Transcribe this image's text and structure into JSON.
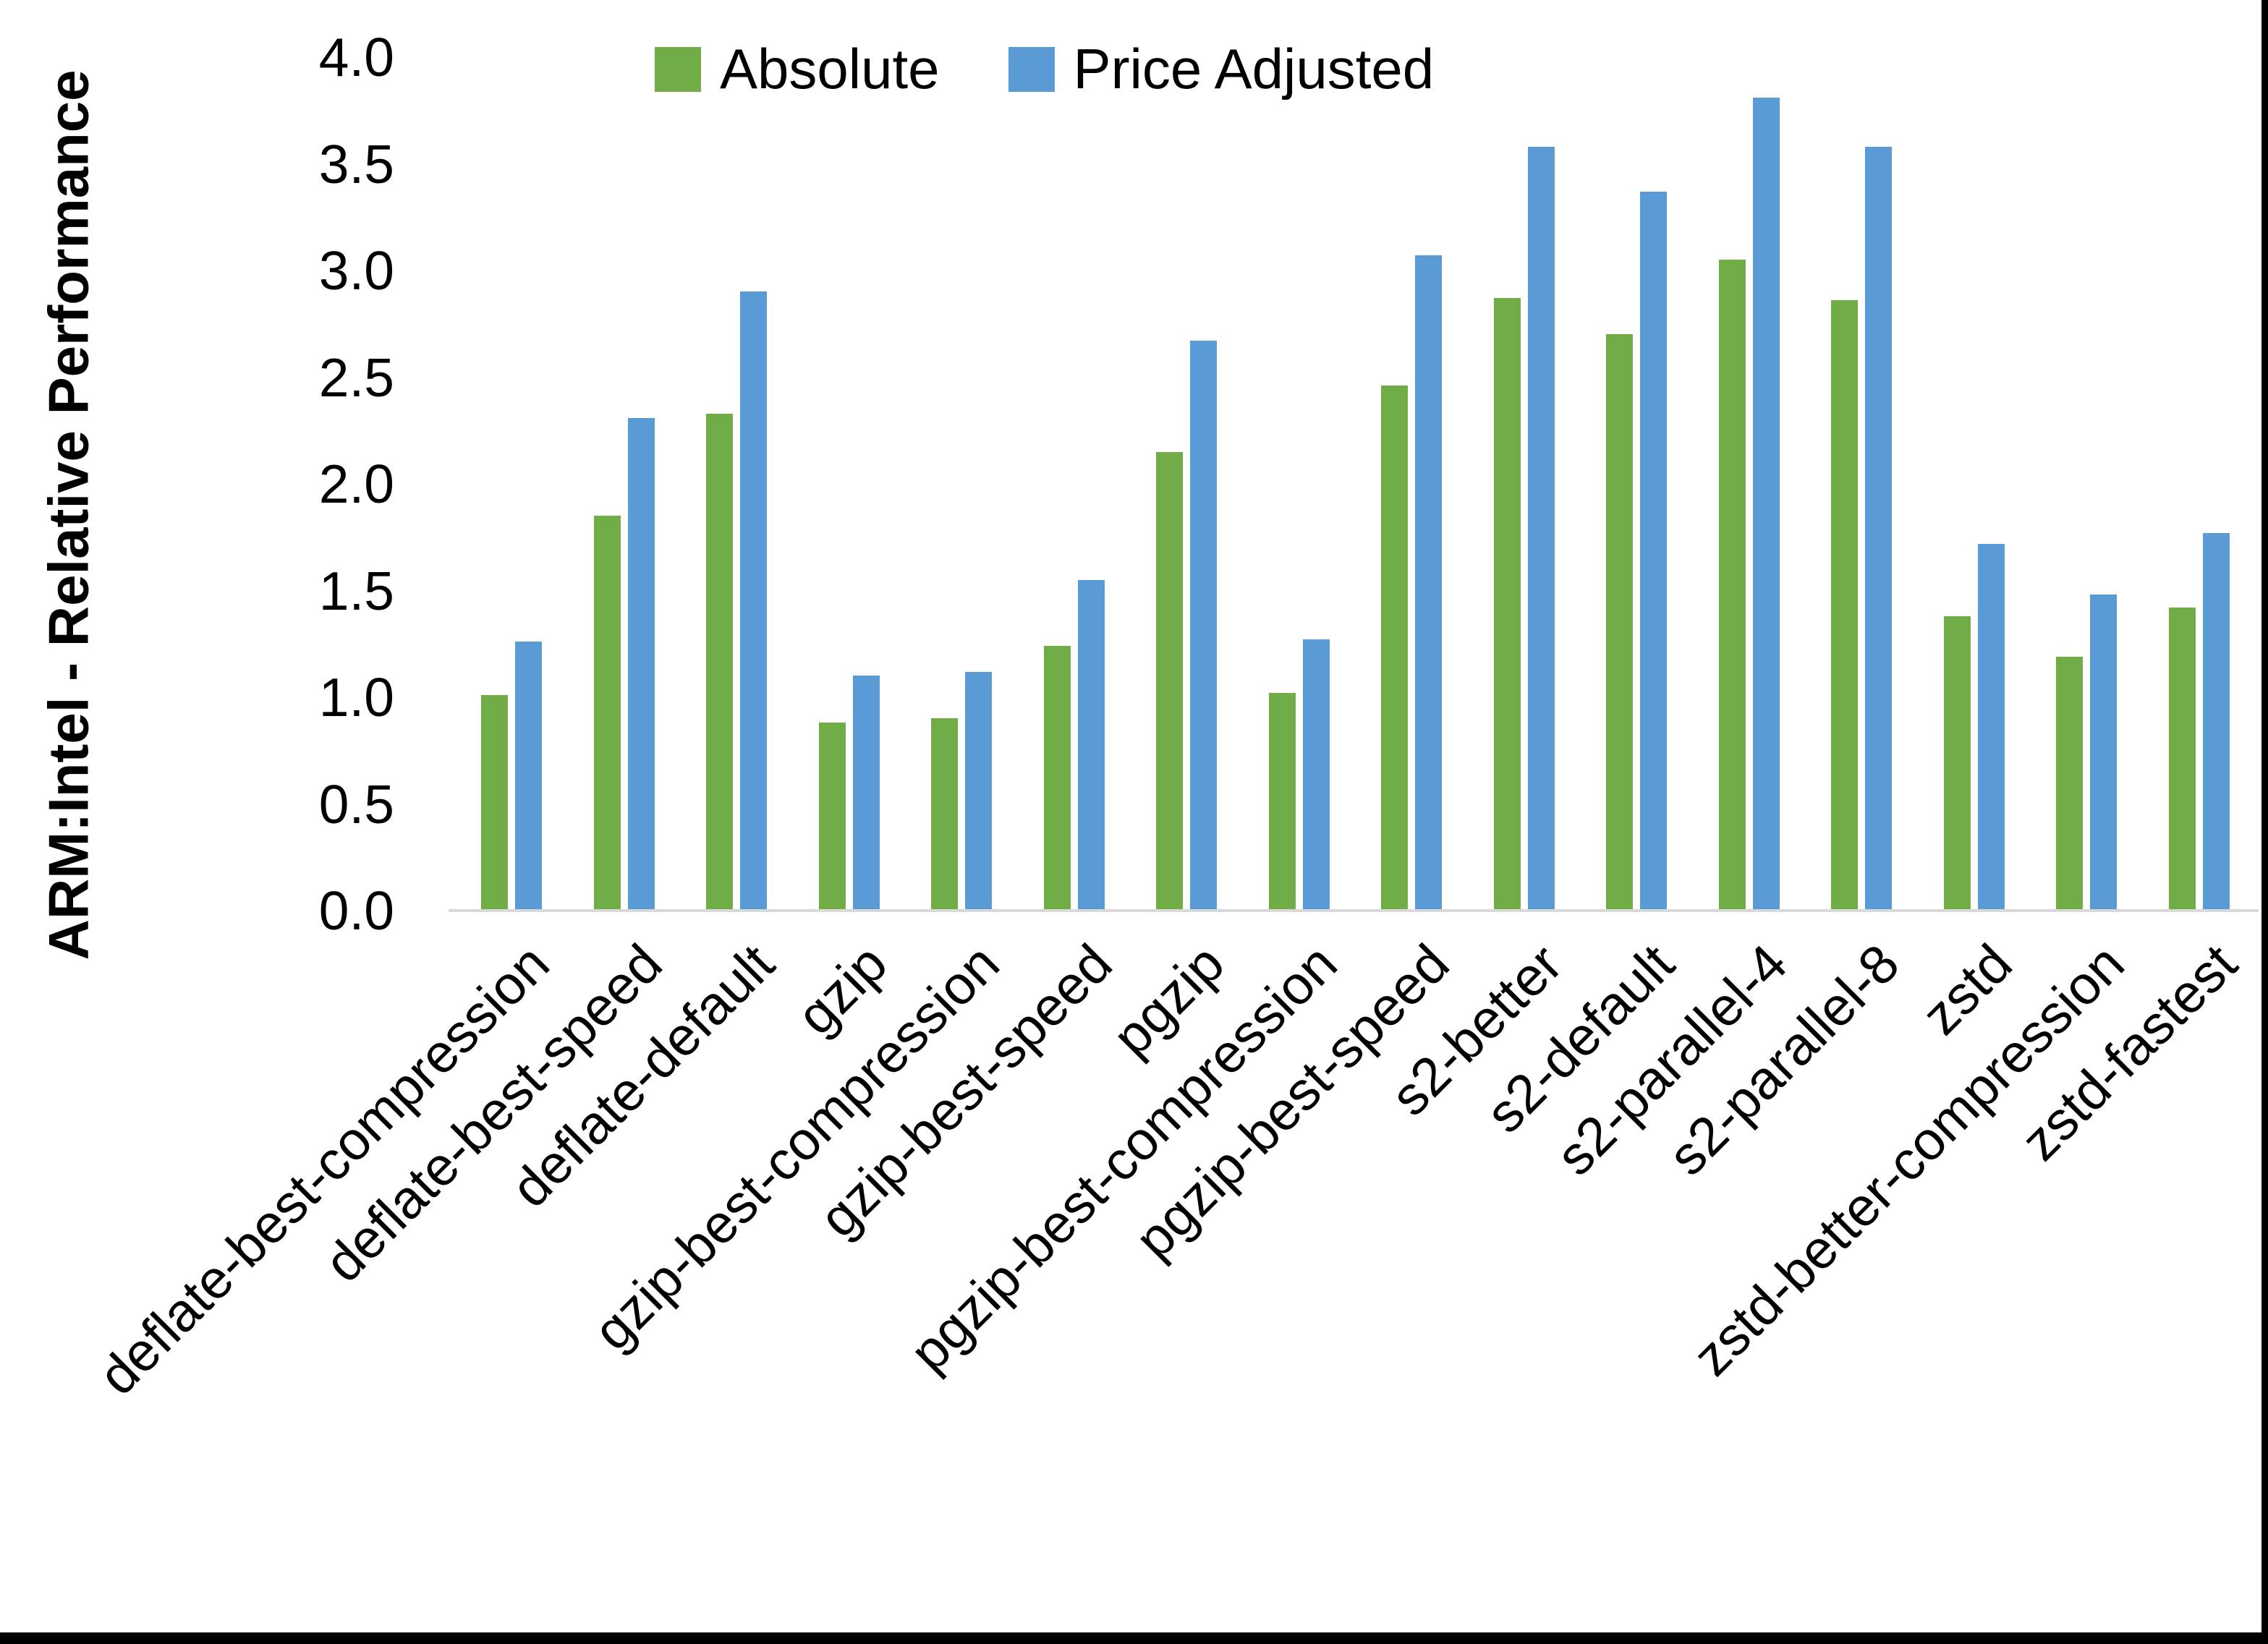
{
  "chart_data": {
    "type": "bar",
    "title": "",
    "xlabel": "",
    "ylabel": "ARM:Intel - Relative Performance",
    "ylim": [
      0.0,
      4.0
    ],
    "ytick_step": 0.5,
    "yticks": [
      "0.0",
      "0.5",
      "1.0",
      "1.5",
      "2.0",
      "2.5",
      "3.0",
      "3.5",
      "4.0"
    ],
    "grid": false,
    "legend_position": "top-center",
    "axis_line_color": "#d9d9d9",
    "text_color": "#000000",
    "categories": [
      "deflate-best-compression",
      "deflate-best-speed",
      "deflate-default",
      "gzip",
      "gzip-best-compression",
      "gzip-best-speed",
      "pgzip",
      "pgzip-best-compression",
      "pgzip-best-speed",
      "s2-better",
      "s2-default",
      "s2-parallel-4",
      "s2-parallel-8",
      "zstd",
      "zstd-better-compression",
      "zstd-fastest"
    ],
    "series": [
      {
        "name": "Absolute",
        "color": "#70AD47",
        "values": [
          1.01,
          1.85,
          2.33,
          0.88,
          0.9,
          1.24,
          2.15,
          1.02,
          2.46,
          2.87,
          2.7,
          3.05,
          2.86,
          1.38,
          1.19,
          1.42
        ]
      },
      {
        "name": "Price Adjusted",
        "color": "#5B9BD5",
        "values": [
          1.26,
          2.31,
          2.9,
          1.1,
          1.12,
          1.55,
          2.67,
          1.27,
          3.07,
          3.58,
          3.37,
          3.81,
          3.58,
          1.72,
          1.48,
          1.77
        ]
      }
    ]
  },
  "frame": {
    "right_border_color": "#000000",
    "bottom_border_color": "#000000"
  }
}
